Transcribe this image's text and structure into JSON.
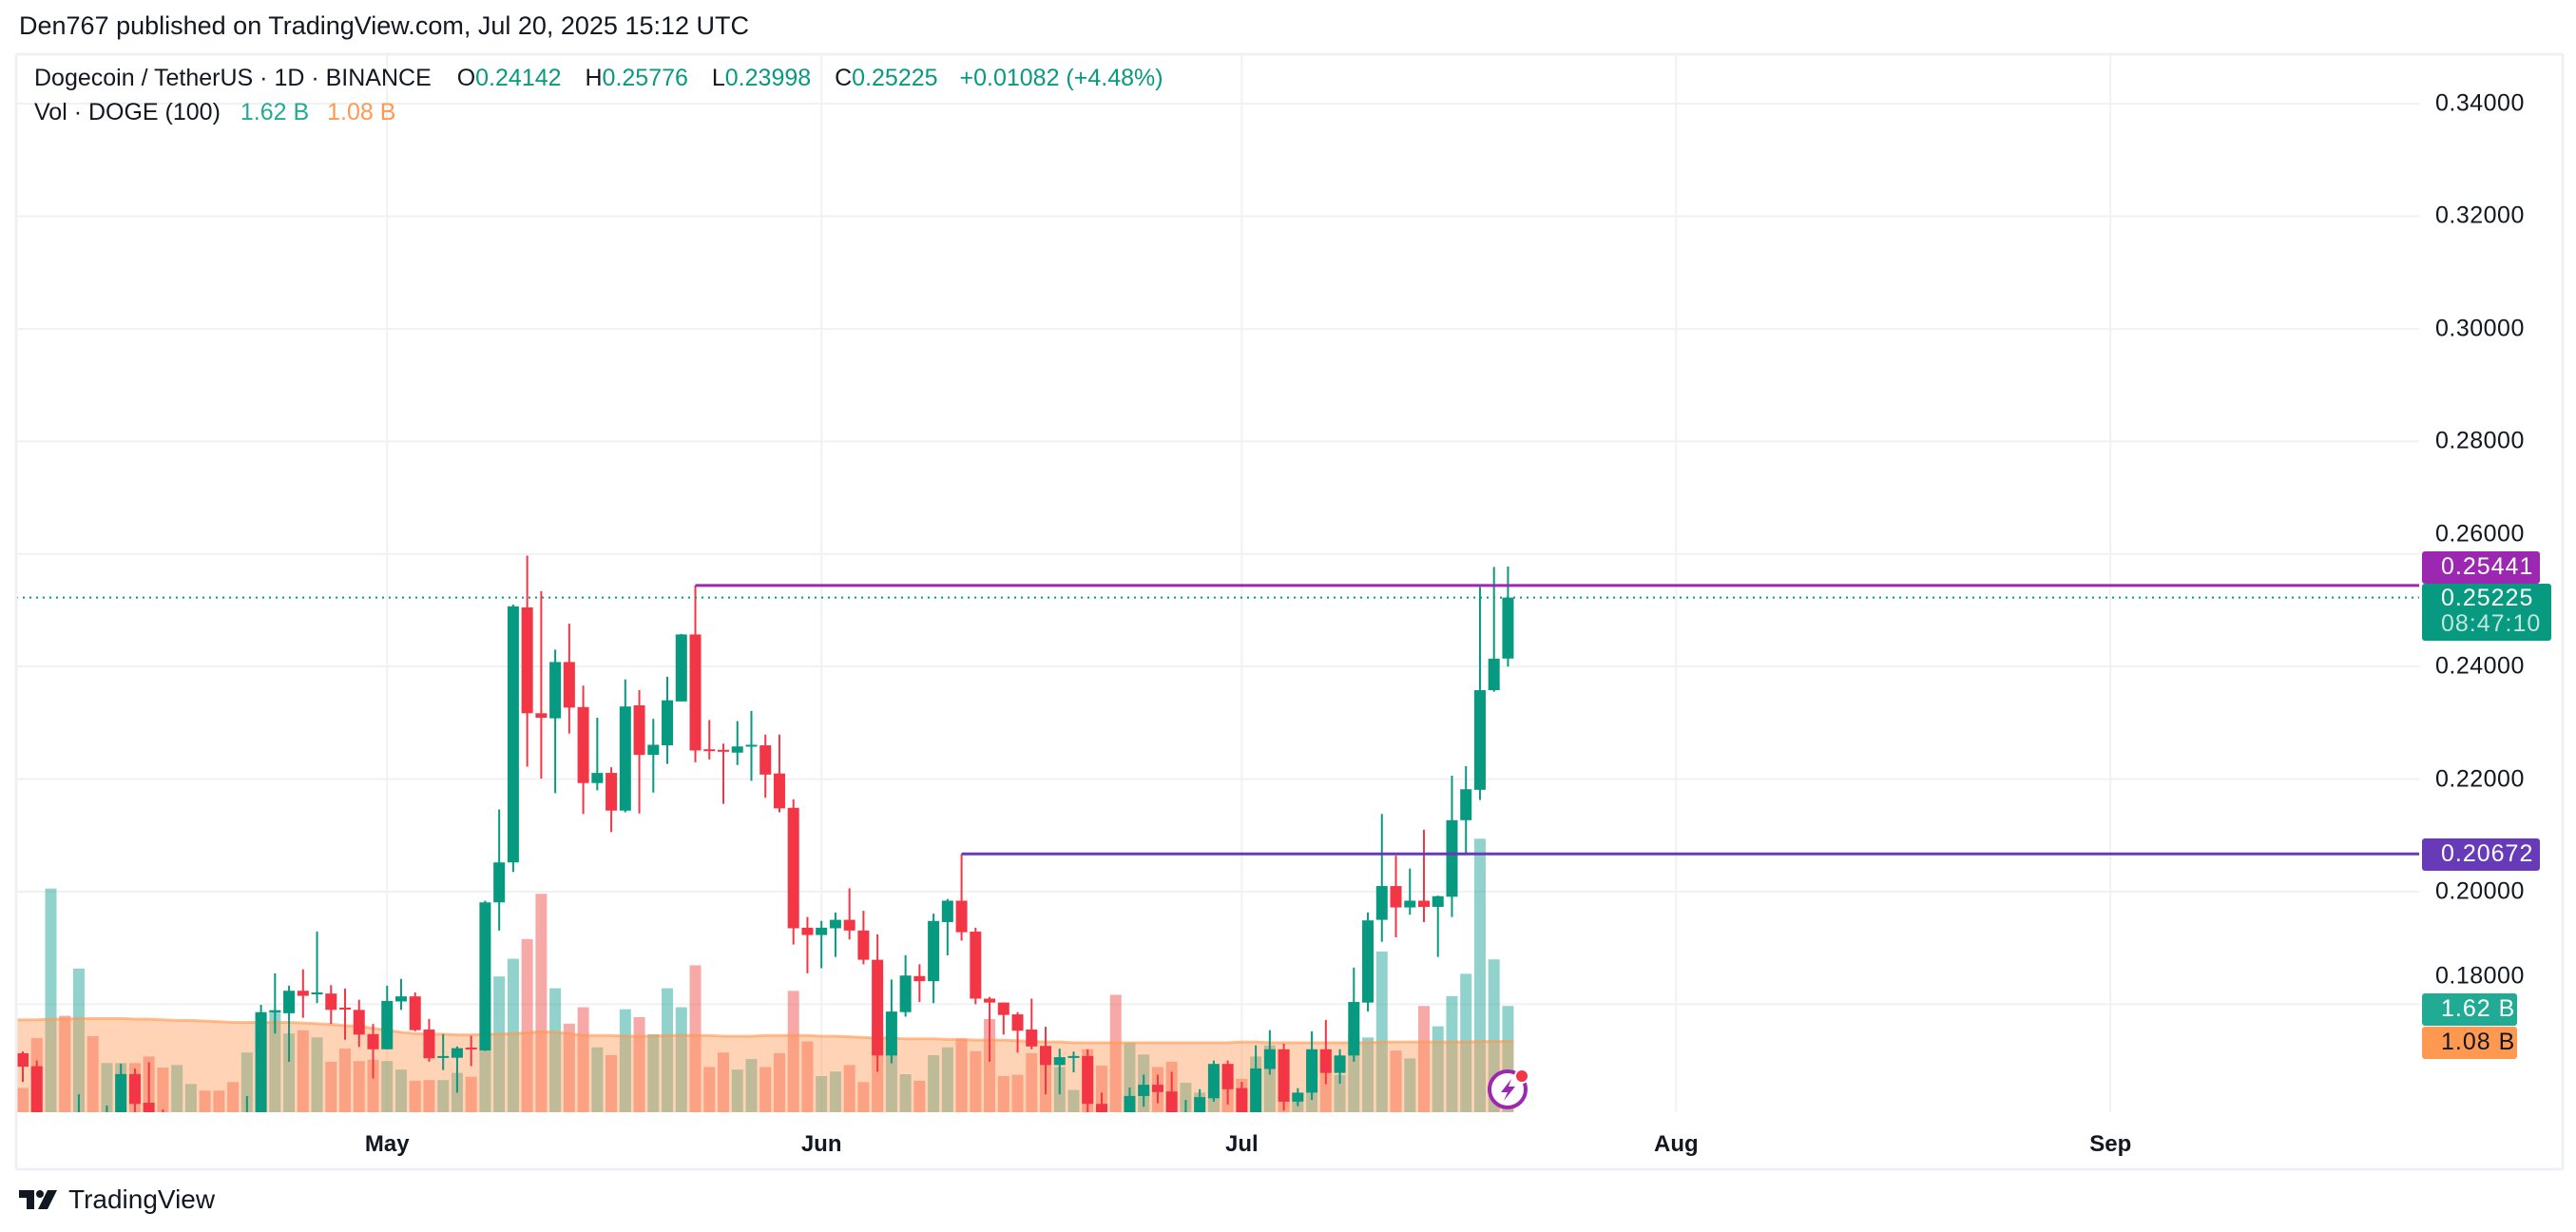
{
  "header": {
    "published": "Den767 published on TradingView.com, Jul 20, 2025 15:12 UTC"
  },
  "legend": {
    "symbol": "Dogecoin / TetherUS · 1D · BINANCE",
    "open_label": "O",
    "open": "0.24142",
    "high_label": "H",
    "high": "0.25776",
    "low_label": "L",
    "low": "0.23998",
    "close_label": "C",
    "close": "0.25225",
    "change": "+0.01082 (+4.48%)",
    "volume_title": "Vol · DOGE (100)",
    "volume_value": "1.62 B",
    "volume_ma_value": "1.08 B"
  },
  "price_axis": {
    "ticks": [
      "0.34000",
      "0.32000",
      "0.30000",
      "0.28000",
      "0.26000",
      "0.24000",
      "0.22000",
      "0.20000",
      "0.18000"
    ],
    "tags": {
      "resistance": "0.25441",
      "last_price": "0.25225",
      "countdown": "08:47:10",
      "support": "0.20672",
      "volume": "1.62 B",
      "volume_ma": "1.08 B"
    }
  },
  "time_axis": {
    "labels": [
      "May",
      "Jun",
      "Jul",
      "Aug",
      "Sep"
    ]
  },
  "brand": {
    "name": "TradingView"
  },
  "colors": {
    "up": "#089981",
    "down": "#F23645",
    "resistance_line": "#9C27B0",
    "support_line": "#673AB7",
    "volume_tag": "#22AB94",
    "volume_ma": "#FF9850",
    "last_price_tag": "#089981"
  },
  "icons": {
    "logo": "tradingview-logo-icon",
    "alert": "lightning-alert-icon"
  },
  "chart_data": {
    "type": "candlestick",
    "symbol": "DOGEUSDT",
    "interval": "1D",
    "x_range": [
      "2025-04-04",
      "2025-09-23"
    ],
    "y_range": [
      0.16,
      0.345
    ],
    "grid": true,
    "horizontal_lines": [
      {
        "price": 0.25441,
        "from": "2025-05-23"
      },
      {
        "price": 0.20672,
        "from": "2025-06-11"
      }
    ],
    "last_price": 0.25225,
    "volume_unit": "B",
    "candles_columns": [
      "date",
      "open",
      "high",
      "low",
      "close",
      "volume"
    ],
    "candles": [
      [
        "2025-04-05",
        0.1713,
        0.1716,
        0.1662,
        0.1689,
        0.37
      ],
      [
        "2025-04-06",
        0.169,
        0.17,
        0.155,
        0.158,
        1.13
      ],
      [
        "2025-04-07",
        0.154,
        0.16,
        0.142,
        0.157,
        3.41
      ],
      [
        "2025-04-08",
        0.157,
        0.16,
        0.148,
        0.15,
        1.47
      ],
      [
        "2025-04-09",
        0.15,
        0.164,
        0.145,
        0.16,
        2.19
      ],
      [
        "2025-04-10",
        0.16,
        0.1605,
        0.152,
        0.154,
        1.16
      ],
      [
        "2025-04-11",
        0.154,
        0.162,
        0.152,
        0.16,
        0.75
      ],
      [
        "2025-04-12",
        0.158,
        0.1694,
        0.157,
        0.1676,
        0.75
      ],
      [
        "2025-04-13",
        0.1676,
        0.1686,
        0.16,
        0.1623,
        0.75
      ],
      [
        "2025-04-14",
        0.1625,
        0.1697,
        0.158,
        0.16,
        0.85
      ],
      [
        "2025-04-15",
        0.16,
        0.1613,
        0.156,
        0.157,
        0.68
      ],
      [
        "2025-04-16",
        0.156,
        0.16,
        0.154,
        0.158,
        0.72
      ],
      [
        "2025-04-17",
        0.158,
        0.1605,
        0.156,
        0.1595,
        0.43
      ],
      [
        "2025-04-18",
        0.1595,
        0.16,
        0.157,
        0.158,
        0.33
      ],
      [
        "2025-04-19",
        0.158,
        0.16,
        0.157,
        0.1575,
        0.33
      ],
      [
        "2025-04-20",
        0.1575,
        0.16,
        0.155,
        0.156,
        0.46
      ],
      [
        "2025-04-21",
        0.156,
        0.1637,
        0.155,
        0.16,
        0.91
      ],
      [
        "2025-04-22",
        0.16,
        0.1799,
        0.159,
        0.1786,
        1.5
      ],
      [
        "2025-04-23",
        0.1786,
        0.1855,
        0.1748,
        0.1789,
        1.56
      ],
      [
        "2025-04-24",
        0.1784,
        0.1833,
        0.1698,
        0.1824,
        1.2
      ],
      [
        "2025-04-25",
        0.1824,
        0.1862,
        0.1776,
        0.1815,
        1.25
      ],
      [
        "2025-04-26",
        0.1819,
        0.1929,
        0.1802,
        0.1821,
        1.14
      ],
      [
        "2025-04-27",
        0.1819,
        0.1834,
        0.1765,
        0.179,
        0.77
      ],
      [
        "2025-04-28",
        0.1794,
        0.1828,
        0.1737,
        0.1791,
        0.97
      ],
      [
        "2025-04-29",
        0.179,
        0.1808,
        0.1724,
        0.1746,
        0.78
      ],
      [
        "2025-04-30",
        0.1747,
        0.1765,
        0.1668,
        0.172,
        0.8
      ],
      [
        "2025-05-01",
        0.172,
        0.1833,
        0.172,
        0.1806,
        0.78
      ],
      [
        "2025-05-02",
        0.1805,
        0.1845,
        0.179,
        0.1814,
        0.65
      ],
      [
        "2025-05-03",
        0.1814,
        0.1821,
        0.1752,
        0.1754,
        0.48
      ],
      [
        "2025-05-04",
        0.1755,
        0.1774,
        0.1698,
        0.1704,
        0.49
      ],
      [
        "2025-05-05",
        0.1706,
        0.1747,
        0.1683,
        0.1708,
        0.49
      ],
      [
        "2025-05-06",
        0.1705,
        0.1725,
        0.1643,
        0.1722,
        0.6
      ],
      [
        "2025-05-07",
        0.1723,
        0.1744,
        0.169,
        0.172,
        0.54
      ],
      [
        "2025-05-08",
        0.1718,
        0.1984,
        0.1717,
        0.1981,
        1.9
      ],
      [
        "2025-05-09",
        0.1981,
        0.2146,
        0.1931,
        0.2052,
        2.07
      ],
      [
        "2025-05-10",
        0.2052,
        0.251,
        0.2035,
        0.2507,
        2.34
      ],
      [
        "2025-05-11",
        0.2505,
        0.2597,
        0.2222,
        0.2317,
        2.64
      ],
      [
        "2025-05-12",
        0.2317,
        0.2534,
        0.2201,
        0.2309,
        3.33
      ],
      [
        "2025-05-13",
        0.2308,
        0.243,
        0.2175,
        0.2408,
        1.89
      ],
      [
        "2025-05-14",
        0.2408,
        0.2476,
        0.2281,
        0.2327,
        1.35
      ],
      [
        "2025-05-15",
        0.2328,
        0.2366,
        0.2138,
        0.2193,
        1.6
      ],
      [
        "2025-05-16",
        0.2193,
        0.2309,
        0.218,
        0.2211,
        0.99
      ],
      [
        "2025-05-17",
        0.2211,
        0.2221,
        0.2106,
        0.2144,
        0.87
      ],
      [
        "2025-05-18",
        0.2144,
        0.2377,
        0.2141,
        0.2329,
        1.57
      ],
      [
        "2025-05-19",
        0.2331,
        0.2358,
        0.2139,
        0.2243,
        1.45
      ],
      [
        "2025-05-20",
        0.2243,
        0.2307,
        0.2176,
        0.2261,
        1.19
      ],
      [
        "2025-05-21",
        0.226,
        0.2382,
        0.2227,
        0.234,
        1.89
      ],
      [
        "2025-05-22",
        0.2338,
        0.2458,
        0.2338,
        0.2457,
        1.6
      ],
      [
        "2025-05-23",
        0.2457,
        0.2544,
        0.223,
        0.2251,
        2.24
      ],
      [
        "2025-05-24",
        0.2253,
        0.2305,
        0.2235,
        0.2251,
        0.69
      ],
      [
        "2025-05-25",
        0.2252,
        0.2263,
        0.2156,
        0.2249,
        0.91
      ],
      [
        "2025-05-26",
        0.2247,
        0.2303,
        0.2225,
        0.2258,
        0.65
      ],
      [
        "2025-05-27",
        0.2259,
        0.2321,
        0.2197,
        0.2261,
        0.81
      ],
      [
        "2025-05-28",
        0.226,
        0.2279,
        0.2167,
        0.2208,
        0.69
      ],
      [
        "2025-05-29",
        0.221,
        0.2279,
        0.2141,
        0.2148,
        0.9
      ],
      [
        "2025-05-30",
        0.2149,
        0.2164,
        0.1906,
        0.1935,
        1.85
      ],
      [
        "2025-05-31",
        0.1936,
        0.1955,
        0.1855,
        0.1923,
        1.08
      ],
      [
        "2025-06-01",
        0.1923,
        0.1948,
        0.1864,
        0.1936,
        0.55
      ],
      [
        "2025-06-02",
        0.1935,
        0.1963,
        0.1884,
        0.195,
        0.62
      ],
      [
        "2025-06-03",
        0.195,
        0.2006,
        0.1915,
        0.1931,
        0.72
      ],
      [
        "2025-06-04",
        0.1931,
        0.1966,
        0.1871,
        0.1879,
        0.46
      ],
      [
        "2025-06-05",
        0.1879,
        0.1924,
        0.168,
        0.1709,
        1.35
      ],
      [
        "2025-06-06",
        0.1709,
        0.1844,
        0.1695,
        0.1787,
        0.89
      ],
      [
        "2025-06-07",
        0.1786,
        0.1887,
        0.1778,
        0.1851,
        0.58
      ],
      [
        "2025-06-08",
        0.185,
        0.1871,
        0.1804,
        0.1841,
        0.48
      ],
      [
        "2025-06-09",
        0.1841,
        0.1961,
        0.1802,
        0.1948,
        0.87
      ],
      [
        "2025-06-10",
        0.1946,
        0.1987,
        0.1887,
        0.1984,
        0.99
      ],
      [
        "2025-06-11",
        0.1984,
        0.2067,
        0.1913,
        0.1928,
        1.12
      ],
      [
        "2025-06-12",
        0.1929,
        0.1936,
        0.18,
        0.181,
        0.93
      ],
      [
        "2025-06-13",
        0.181,
        0.1813,
        0.1698,
        0.1803,
        1.42
      ],
      [
        "2025-06-14",
        0.1803,
        0.1803,
        0.1746,
        0.1781,
        0.55
      ],
      [
        "2025-06-15",
        0.1782,
        0.1786,
        0.1714,
        0.1753,
        0.57
      ],
      [
        "2025-06-16",
        0.1755,
        0.181,
        0.172,
        0.1725,
        0.9
      ],
      [
        "2025-06-17",
        0.1726,
        0.176,
        0.164,
        0.1692,
        0.89
      ],
      [
        "2025-06-18",
        0.1692,
        0.1721,
        0.164,
        0.1706,
        0.69
      ],
      [
        "2025-06-19",
        0.1707,
        0.1716,
        0.1679,
        0.1708,
        0.34
      ],
      [
        "2025-06-20",
        0.1708,
        0.172,
        0.1605,
        0.1623,
        0.96
      ],
      [
        "2025-06-21",
        0.1623,
        0.1643,
        0.159,
        0.1605,
        0.71
      ],
      [
        "2025-06-22",
        0.1605,
        0.1608,
        0.15,
        0.156,
        1.79
      ],
      [
        "2025-06-23",
        0.156,
        0.1652,
        0.155,
        0.1637,
        1.06
      ],
      [
        "2025-06-24",
        0.1637,
        0.1675,
        0.1618,
        0.1657,
        0.88
      ],
      [
        "2025-06-25",
        0.1657,
        0.1675,
        0.1624,
        0.1644,
        0.69
      ],
      [
        "2025-06-26",
        0.1645,
        0.168,
        0.158,
        0.16,
        0.77
      ],
      [
        "2025-06-27",
        0.157,
        0.163,
        0.156,
        0.159,
        0.45
      ],
      [
        "2025-06-28",
        0.1595,
        0.1649,
        0.158,
        0.1635,
        0.3
      ],
      [
        "2025-06-29",
        0.1633,
        0.17,
        0.1627,
        0.1694,
        0.42
      ],
      [
        "2025-06-30",
        0.1694,
        0.17,
        0.1622,
        0.1649,
        0.59
      ],
      [
        "2025-07-01",
        0.1651,
        0.1662,
        0.158,
        0.16,
        0.51
      ],
      [
        "2025-07-02",
        0.16,
        0.1727,
        0.159,
        0.1686,
        0.85
      ],
      [
        "2025-07-03",
        0.1685,
        0.1754,
        0.1675,
        0.172,
        1.02
      ],
      [
        "2025-07-04",
        0.172,
        0.173,
        0.1611,
        0.1627,
        0.95
      ],
      [
        "2025-07-05",
        0.1627,
        0.1651,
        0.1619,
        0.1643,
        0.27
      ],
      [
        "2025-07-06",
        0.1643,
        0.1752,
        0.163,
        0.172,
        0.89
      ],
      [
        "2025-07-07",
        0.172,
        0.1772,
        0.1658,
        0.1678,
        0.95
      ],
      [
        "2025-07-08",
        0.1678,
        0.172,
        0.1659,
        0.1709,
        0.57
      ],
      [
        "2025-07-09",
        0.1709,
        0.1865,
        0.1698,
        0.1804,
        1.19
      ],
      [
        "2025-07-10",
        0.1803,
        0.1963,
        0.1787,
        0.1949,
        1.14
      ],
      [
        "2025-07-11",
        0.195,
        0.2138,
        0.1911,
        0.201,
        2.45
      ],
      [
        "2025-07-12",
        0.201,
        0.2064,
        0.1919,
        0.1972,
        0.94
      ],
      [
        "2025-07-13",
        0.1972,
        0.2041,
        0.1959,
        0.1984,
        0.82
      ],
      [
        "2025-07-14",
        0.1984,
        0.211,
        0.1946,
        0.1973,
        1.62
      ],
      [
        "2025-07-15",
        0.1973,
        0.1993,
        0.1884,
        0.1992,
        1.31
      ],
      [
        "2025-07-16",
        0.1991,
        0.2206,
        0.1955,
        0.2127,
        1.77
      ],
      [
        "2025-07-17",
        0.2127,
        0.2223,
        0.2069,
        0.2182,
        2.11
      ],
      [
        "2025-07-18",
        0.2181,
        0.2541,
        0.2163,
        0.2358,
        4.17
      ],
      [
        "2025-07-19",
        0.2358,
        0.2577,
        0.2355,
        0.2414,
        2.33
      ],
      [
        "2025-07-20",
        0.24142,
        0.25776,
        0.23998,
        0.25225,
        1.62
      ]
    ],
    "volume_ma": [
      1.41,
      1.41,
      1.42,
      1.42,
      1.43,
      1.43,
      1.43,
      1.43,
      1.42,
      1.42,
      1.41,
      1.4,
      1.4,
      1.39,
      1.38,
      1.37,
      1.37,
      1.37,
      1.37,
      1.37,
      1.36,
      1.35,
      1.34,
      1.32,
      1.31,
      1.28,
      1.25,
      1.22,
      1.2,
      1.19,
      1.19,
      1.18,
      1.18,
      1.19,
      1.19,
      1.2,
      1.21,
      1.23,
      1.22,
      1.2,
      1.17,
      1.17,
      1.17,
      1.16,
      1.16,
      1.16,
      1.17,
      1.17,
      1.17,
      1.17,
      1.16,
      1.16,
      1.16,
      1.17,
      1.17,
      1.17,
      1.17,
      1.16,
      1.16,
      1.15,
      1.14,
      1.13,
      1.13,
      1.12,
      1.12,
      1.12,
      1.11,
      1.11,
      1.1,
      1.1,
      1.1,
      1.09,
      1.08,
      1.07,
      1.07,
      1.06,
      1.06,
      1.06,
      1.06,
      1.06,
      1.06,
      1.06,
      1.06,
      1.06,
      1.06,
      1.06,
      1.06,
      1.07,
      1.07,
      1.06,
      1.06,
      1.06,
      1.06,
      1.06,
      1.06,
      1.06,
      1.06,
      1.07,
      1.07,
      1.07,
      1.07,
      1.07,
      1.07,
      1.07,
      1.08,
      1.08,
      1.08
    ]
  }
}
